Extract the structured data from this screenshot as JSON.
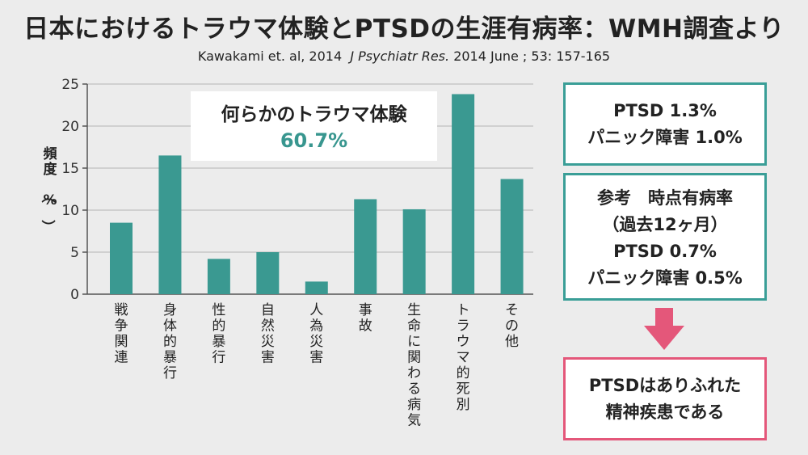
{
  "title": "日本におけるトラウマ体験とPTSDの生涯有病率：WMH調査より",
  "citation": {
    "authors_year": "Kawakami et. al, 2014",
    "journal": "J Psychiatr Res.",
    "details": "2014 June ; 53: 157-165"
  },
  "callout": {
    "label": "何らかのトラウマ体験",
    "value": "60.7%"
  },
  "chart_data": {
    "type": "bar",
    "categories": [
      "戦争関連",
      "身体的暴行",
      "性的暴行",
      "自然災害",
      "人為災害",
      "事故",
      "生命に関わる病気",
      "トラウマ的死別",
      "その他"
    ],
    "values": [
      8.5,
      16.5,
      4.2,
      5.0,
      1.5,
      11.3,
      10.1,
      23.8,
      13.7
    ],
    "ylabel": "頻度（%）",
    "ylim": [
      0,
      25
    ],
    "yticks": [
      0,
      5,
      10,
      15,
      20,
      25
    ],
    "grid": true,
    "bar_color": "#3a9991"
  },
  "box_lifetime": {
    "line1": "PTSD 1.3%",
    "line2": "パニック障害 1.0%"
  },
  "box_point": {
    "line1": "参考　時点有病率",
    "line2": "（過去12ヶ月）",
    "line3": "PTSD 0.7%",
    "line4": "パニック障害 0.5%"
  },
  "conclusion": {
    "line1": "PTSDはありふれた",
    "line2": "精神疾患である"
  },
  "colors": {
    "teal": "#3a9e97",
    "pink": "#e4577a",
    "accent_text": "#38968f"
  }
}
